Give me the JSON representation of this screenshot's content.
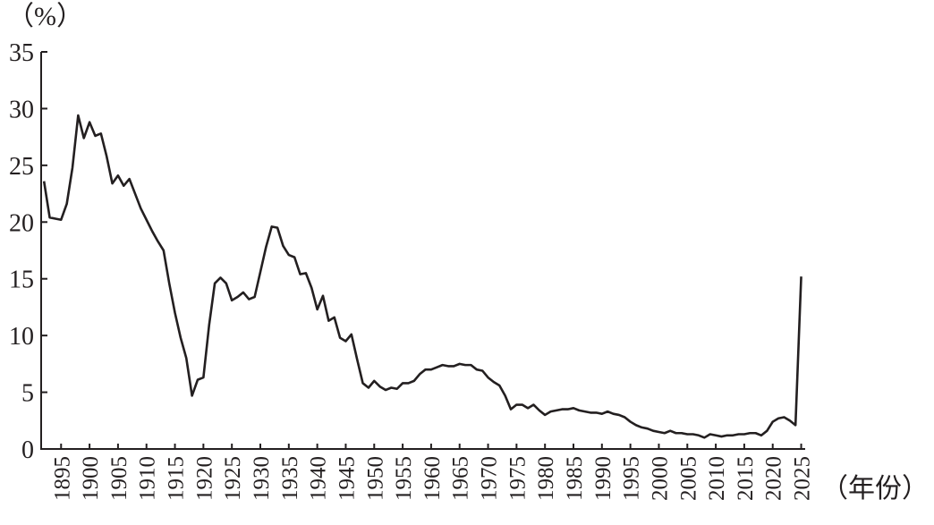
{
  "chart_data": {
    "type": "line",
    "y_label": "（%）",
    "x_label": "（年份）",
    "x": [
      1892,
      1893,
      1894,
      1895,
      1896,
      1897,
      1898,
      1899,
      1900,
      1901,
      1902,
      1903,
      1904,
      1905,
      1906,
      1907,
      1908,
      1909,
      1910,
      1911,
      1912,
      1913,
      1914,
      1915,
      1916,
      1917,
      1918,
      1919,
      1920,
      1921,
      1922,
      1923,
      1924,
      1925,
      1926,
      1927,
      1928,
      1929,
      1930,
      1931,
      1932,
      1933,
      1934,
      1935,
      1936,
      1937,
      1938,
      1939,
      1940,
      1941,
      1942,
      1943,
      1944,
      1945,
      1946,
      1947,
      1948,
      1949,
      1950,
      1951,
      1952,
      1953,
      1954,
      1955,
      1956,
      1957,
      1958,
      1959,
      1960,
      1961,
      1962,
      1963,
      1964,
      1965,
      1966,
      1967,
      1968,
      1969,
      1970,
      1971,
      1972,
      1973,
      1974,
      1975,
      1976,
      1977,
      1978,
      1979,
      1980,
      1981,
      1982,
      1983,
      1984,
      1985,
      1986,
      1987,
      1988,
      1989,
      1990,
      1991,
      1992,
      1993,
      1994,
      1995,
      1996,
      1997,
      1998,
      1999,
      2000,
      2001,
      2002,
      2003,
      2004,
      2005,
      2006,
      2007,
      2008,
      2009,
      2010,
      2011,
      2012,
      2013,
      2014,
      2015,
      2016,
      2017,
      2018,
      2019,
      2020,
      2021,
      2022,
      2023,
      2024,
      2025
    ],
    "series": [
      {
        "color": "#231f20",
        "values": [
          23.6,
          20.4,
          20.3,
          20.2,
          21.6,
          24.8,
          29.4,
          27.4,
          28.8,
          27.6,
          27.8,
          25.8,
          23.4,
          24.1,
          23.2,
          23.8,
          22.5,
          21.2,
          20.2,
          19.2,
          18.3,
          17.5,
          14.6,
          12.0,
          9.8,
          8.0,
          4.7,
          6.1,
          6.3,
          10.9,
          14.6,
          15.1,
          14.6,
          13.1,
          13.4,
          13.8,
          13.2,
          13.4,
          15.6,
          17.8,
          19.6,
          19.5,
          17.9,
          17.1,
          16.9,
          15.4,
          15.5,
          14.2,
          12.3,
          13.5,
          11.3,
          11.6,
          9.8,
          9.5,
          10.1,
          7.9,
          5.8,
          5.4,
          6.0,
          5.5,
          5.2,
          5.4,
          5.3,
          5.8,
          5.8,
          6.0,
          6.6,
          7.0,
          7.0,
          7.2,
          7.4,
          7.3,
          7.3,
          7.5,
          7.4,
          7.4,
          7.0,
          6.9,
          6.3,
          5.9,
          5.6,
          4.7,
          3.5,
          3.9,
          3.9,
          3.6,
          3.9,
          3.4,
          3.0,
          3.3,
          3.4,
          3.5,
          3.5,
          3.6,
          3.4,
          3.3,
          3.2,
          3.2,
          3.1,
          3.3,
          3.1,
          3.0,
          2.8,
          2.4,
          2.1,
          1.9,
          1.8,
          1.6,
          1.5,
          1.4,
          1.6,
          1.4,
          1.4,
          1.3,
          1.3,
          1.2,
          1.0,
          1.3,
          1.2,
          1.1,
          1.2,
          1.2,
          1.3,
          1.3,
          1.4,
          1.4,
          1.2,
          1.6,
          2.4,
          2.7,
          2.8,
          2.5,
          2.1,
          15.2
        ]
      }
    ],
    "xlim": [
      1891.5,
      2025.7
    ],
    "ylim": [
      0,
      35
    ],
    "xticks": [
      1895,
      1900,
      1905,
      1910,
      1915,
      1920,
      1925,
      1930,
      1935,
      1940,
      1945,
      1950,
      1955,
      1960,
      1965,
      1970,
      1975,
      1980,
      1985,
      1990,
      1995,
      2000,
      2005,
      2010,
      2015,
      2020,
      2025
    ],
    "yticks": [
      0,
      5,
      10,
      15,
      20,
      25,
      30,
      35
    ]
  }
}
